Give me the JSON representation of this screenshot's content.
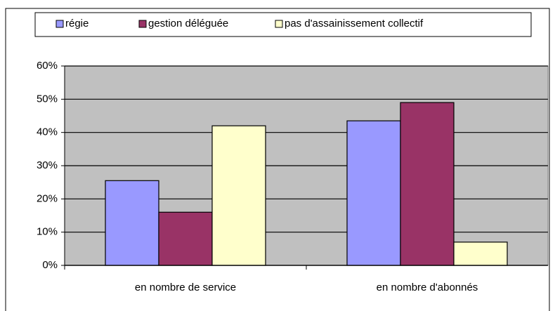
{
  "chart_data": {
    "type": "bar",
    "categories": [
      "en nombre de service",
      "en nombre d'abonnés"
    ],
    "series": [
      {
        "name": "régie",
        "color": "#9999ff",
        "values": [
          25.5,
          43.5
        ]
      },
      {
        "name": "gestion déléguée",
        "color": "#993366",
        "values": [
          16,
          49
        ]
      },
      {
        "name": "pas d'assainissement collectif",
        "color": "#ffffcc",
        "values": [
          42,
          7
        ]
      }
    ],
    "ylim": [
      0,
      60
    ],
    "yticks": [
      {
        "value": 0,
        "label": "0%"
      },
      {
        "value": 10,
        "label": "10%"
      },
      {
        "value": 20,
        "label": "20%"
      },
      {
        "value": 30,
        "label": "30%"
      },
      {
        "value": 40,
        "label": "40%"
      },
      {
        "value": 50,
        "label": "50%"
      },
      {
        "value": 60,
        "label": "60%"
      }
    ],
    "grid": true,
    "legend": "top"
  }
}
